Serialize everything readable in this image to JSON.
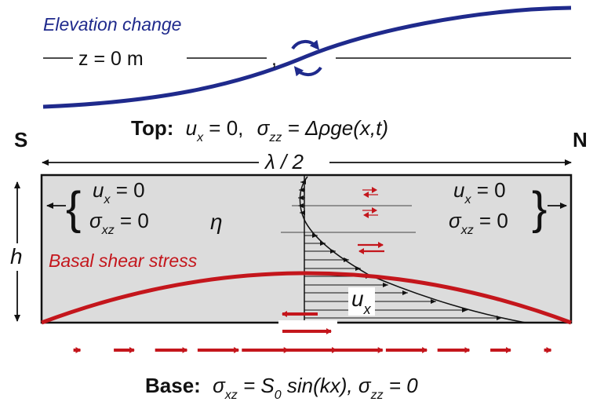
{
  "elevation": {
    "title": "Elevation change",
    "datum_label": "z = 0 m",
    "datum_comma": ","
  },
  "top_bc": {
    "prefix": "Top:",
    "ux": "u",
    "ux_sub": "x",
    "ux_eq": " = 0,",
    "sigma": "σ",
    "sigma_sub": "zz",
    "sigma_eq": " = Δρge(x,t)"
  },
  "directions": {
    "south": "S",
    "north": "N"
  },
  "width_label": "λ / 2",
  "height_label": "h",
  "viscosity_label": "η",
  "side_bc": {
    "ux": "u",
    "ux_sub": "x",
    "ux_eq": " = 0",
    "sigma": "σ",
    "sigma_sub": "xz",
    "sigma_eq": " = 0"
  },
  "basal_shear_label": "Basal shear stress",
  "velocity_label": {
    "main": "u",
    "sub": "x"
  },
  "base_bc": {
    "prefix": "Base:",
    "sigma": "σ",
    "sigma_sub": "xz",
    "eq1": " = S",
    "s_sub": "0",
    "eq2": " sin(kx), ",
    "sigma2": "σ",
    "sigma2_sub": "zz",
    "eq3": " = 0"
  },
  "colors": {
    "elevation_line": "#1f2a8c",
    "basal_shear": "#c4161c",
    "block_fill": "#dcdcdc",
    "text": "#111111"
  }
}
